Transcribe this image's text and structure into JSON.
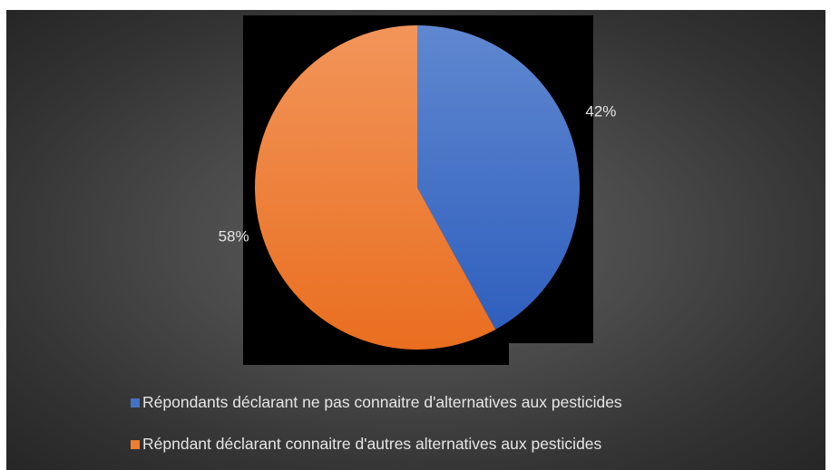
{
  "chart_data": {
    "type": "pie",
    "title": "",
    "slices": [
      {
        "label": "Répondants déclarant ne pas connaitre d'alternatives  aux pesticides",
        "value": 42,
        "display": "42%",
        "color": "#4472C4"
      },
      {
        "label": "Répndant déclarant connaitre d'autres alternatives aux pesticides",
        "value": 58,
        "display": "58%",
        "color": "#ED7D31"
      }
    ],
    "legend_position": "bottom"
  }
}
